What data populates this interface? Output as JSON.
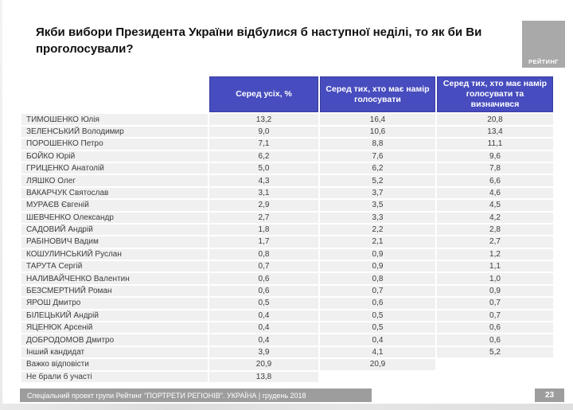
{
  "title": "Якби вибори Президента України відбулися б наступної неділі, то як би Ви проголосували?",
  "logo": {
    "label": "РЕЙТИНГ"
  },
  "table": {
    "columns": [
      "Серед усіх, %",
      "Серед тих, хто має намір голосувати",
      "Серед тих, хто має намір голосувати та визначився"
    ],
    "rows": [
      {
        "name": "ТИМОШЕНКО Юлія",
        "values": [
          "13,2",
          "16,4",
          "20,8"
        ]
      },
      {
        "name": "ЗЕЛЕНСЬКИЙ Володимир",
        "values": [
          "9,0",
          "10,6",
          "13,4"
        ]
      },
      {
        "name": "ПОРОШЕНКО Петро",
        "values": [
          "7,1",
          "8,8",
          "11,1"
        ]
      },
      {
        "name": "БОЙКО Юрій",
        "values": [
          "6,2",
          "7,6",
          "9,6"
        ]
      },
      {
        "name": "ГРИЦЕНКО Анатолій",
        "values": [
          "5,0",
          "6,2",
          "7,8"
        ]
      },
      {
        "name": "ЛЯШКО Олег",
        "values": [
          "4,3",
          "5,2",
          "6,6"
        ]
      },
      {
        "name": "ВАКАРЧУК Святослав",
        "values": [
          "3,1",
          "3,7",
          "4,6"
        ]
      },
      {
        "name": "МУРАЄВ Євгеній",
        "values": [
          "2,9",
          "3,5",
          "4,5"
        ]
      },
      {
        "name": "ШЕВЧЕНКО Олександр",
        "values": [
          "2,7",
          "3,3",
          "4,2"
        ]
      },
      {
        "name": "САДОВИЙ Андрій",
        "values": [
          "1,8",
          "2,2",
          "2,8"
        ]
      },
      {
        "name": "РАБІНОВИЧ Вадим",
        "values": [
          "1,7",
          "2,1",
          "2,7"
        ]
      },
      {
        "name": "КОШУЛИНСЬКИЙ Руслан",
        "values": [
          "0,8",
          "0,9",
          "1,2"
        ]
      },
      {
        "name": "ТАРУТА Сергій",
        "values": [
          "0,7",
          "0,9",
          "1,1"
        ]
      },
      {
        "name": "НАЛИВАЙЧЕНКО Валентин",
        "values": [
          "0,6",
          "0,8",
          "1,0"
        ]
      },
      {
        "name": "БЕЗСМЕРТНИЙ Роман",
        "values": [
          "0,6",
          "0,7",
          "0,9"
        ]
      },
      {
        "name": "ЯРОШ Дмитро",
        "values": [
          "0,5",
          "0,6",
          "0,7"
        ]
      },
      {
        "name": "БІЛЕЦЬКИЙ Андрій",
        "values": [
          "0,4",
          "0,5",
          "0,7"
        ]
      },
      {
        "name": "ЯЦЕНЮК Арсеній",
        "values": [
          "0,4",
          "0,5",
          "0,6"
        ]
      },
      {
        "name": "ДОБРОДОМОВ Дмитро",
        "values": [
          "0,4",
          "0,4",
          "0,6"
        ]
      },
      {
        "name": "Інший кандидат",
        "values": [
          "3,9",
          "4,1",
          "5,2"
        ]
      },
      {
        "name": "Важко відповісти",
        "values": [
          "20,9",
          "20,9",
          ""
        ]
      },
      {
        "name": "Не брали б участі",
        "values": [
          "13,8",
          "",
          ""
        ]
      }
    ]
  },
  "footer": {
    "source": "Спеціальний проект групи Рейтинг \"ПОРТРЕТИ РЕГІОНІВ\". УКРАЇНА | грудень 2018",
    "page": "23"
  },
  "colors": {
    "header_bg": "#474cbe",
    "header_border": "#383d9f",
    "row_bg": "#f0f0f0",
    "footer_bg": "#9d9d9d",
    "logo_bg": "#a9a9a9"
  }
}
